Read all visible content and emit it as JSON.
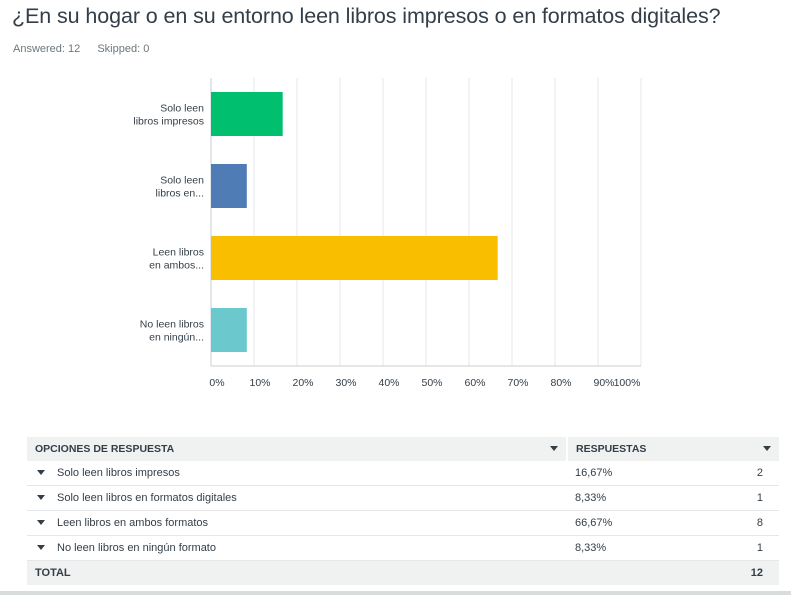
{
  "question": {
    "title": "¿En su hogar o en su entorno leen libros impresos o en formatos digitales?"
  },
  "stats": {
    "answered": "Answered: 12",
    "skipped": "Skipped: 0"
  },
  "chart_data": {
    "type": "bar",
    "orientation": "horizontal",
    "categories": [
      [
        "Solo leen",
        "libros impresos"
      ],
      [
        "Solo leen",
        "libros en..."
      ],
      [
        "Leen libros",
        "en ambos..."
      ],
      [
        "No leen libros",
        "en ningún..."
      ]
    ],
    "values": [
      16.67,
      8.33,
      66.67,
      8.33
    ],
    "colors": [
      "#00bf6f",
      "#507cb6",
      "#f9be00",
      "#6bc8cd"
    ],
    "xlim": [
      0,
      100
    ],
    "xticks": [
      "0%",
      "10%",
      "20%",
      "30%",
      "40%",
      "50%",
      "60%",
      "70%",
      "80%",
      "90%",
      "100%"
    ],
    "grid": true,
    "title": "",
    "xlabel": "",
    "ylabel": ""
  },
  "table": {
    "headers": {
      "option": "OPCIONES DE RESPUESTA",
      "responses": "RESPUESTAS"
    },
    "rows": [
      {
        "option": "Solo leen libros impresos",
        "percent": "16,67%",
        "count": "2"
      },
      {
        "option": "Solo leen libros en formatos digitales",
        "percent": "8,33%",
        "count": "1"
      },
      {
        "option": "Leen  libros en ambos formatos",
        "percent": "66,67%",
        "count": "8"
      },
      {
        "option": "No leen libros en ningún formato",
        "percent": "8,33%",
        "count": "1"
      }
    ],
    "total": {
      "label": "TOTAL",
      "count": "12"
    }
  }
}
